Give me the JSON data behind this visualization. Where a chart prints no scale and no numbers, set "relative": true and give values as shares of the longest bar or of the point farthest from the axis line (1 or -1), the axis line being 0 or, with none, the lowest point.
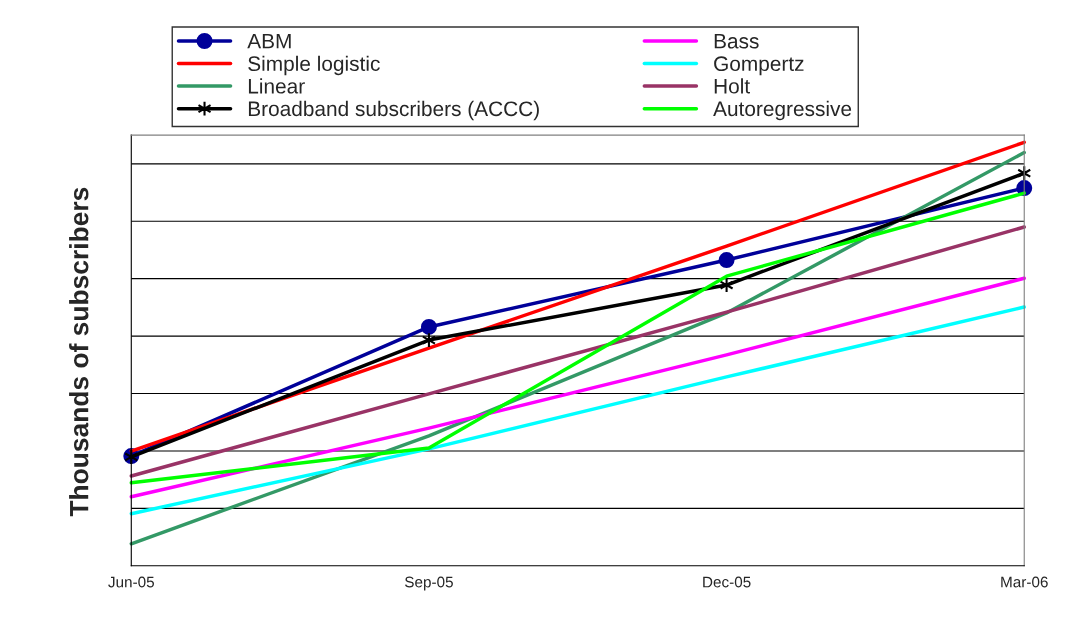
{
  "chart_data": {
    "type": "line",
    "ylabel": "Thousands of subscribers",
    "relative": true,
    "categories": [
      "Jun-05",
      "Sep-05",
      "Dec-05",
      "Mar-06"
    ],
    "series": [
      {
        "name": "ABM",
        "color": "#000099",
        "marker": "circle",
        "values": [
          0.259,
          0.564,
          0.722,
          0.892
        ]
      },
      {
        "name": "Simple logistic",
        "color": "#ff0000",
        "values": [
          0.271,
          0.514,
          0.755,
          1.0
        ]
      },
      {
        "name": "Linear",
        "color": "#339966",
        "values": [
          0.052,
          0.307,
          0.597,
          0.976
        ]
      },
      {
        "name": "Broadband subscribers (ACCC)",
        "color": "#000000",
        "marker": "cross",
        "values": [
          0.257,
          0.533,
          0.663,
          0.927
        ]
      },
      {
        "name": "Bass",
        "color": "#ff00ff",
        "values": [
          0.163,
          0.325,
          0.498,
          0.679
        ]
      },
      {
        "name": "Gompertz",
        "color": "#00ffff",
        "values": [
          0.123,
          0.276,
          0.446,
          0.611
        ]
      },
      {
        "name": "Holt",
        "color": "#993366",
        "values": [
          0.212,
          0.406,
          0.599,
          0.8
        ]
      },
      {
        "name": "Autoregressive",
        "color": "#00ff00",
        "values": [
          0.196,
          0.278,
          0.684,
          0.88
        ]
      }
    ],
    "grid": "y",
    "legend": "top",
    "line_style": "solid"
  }
}
